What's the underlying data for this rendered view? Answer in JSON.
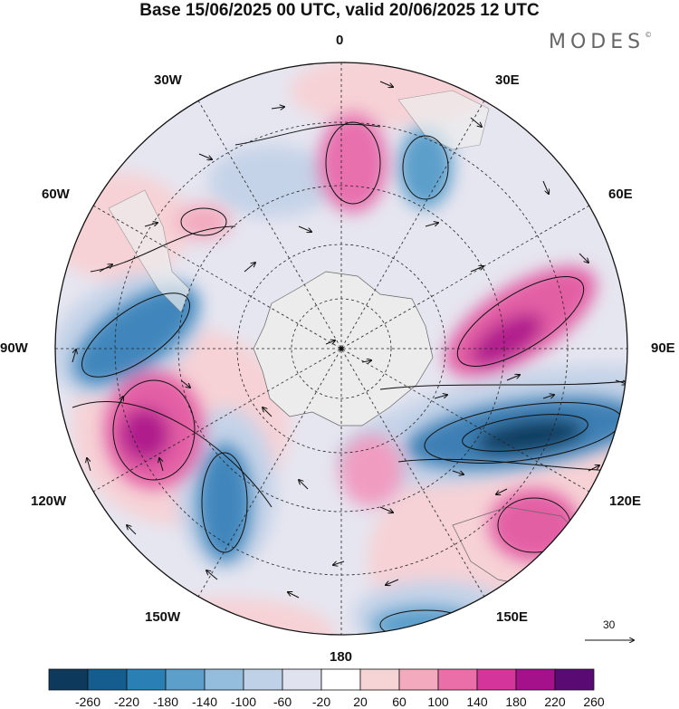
{
  "title": "Base 15/06/2025 00 UTC, valid 20/06/2025 12 UTC",
  "brand": "MODES",
  "brand_mark": "©",
  "longitude_labels": {
    "lon_0": "0",
    "lon_30e": "30E",
    "lon_60e": "60E",
    "lon_90e": "90E",
    "lon_120e": "120E",
    "lon_150e": "150E",
    "lon_180": "180",
    "lon_150w": "150W",
    "lon_120w": "120W",
    "lon_90w": "90W",
    "lon_60w": "60W",
    "lon_30w": "30W"
  },
  "reference_vector": {
    "label": "30"
  },
  "colorbar": {
    "ticks": [
      "-260",
      "-220",
      "-180",
      "-140",
      "-100",
      "-60",
      "-20",
      "20",
      "60",
      "100",
      "140",
      "180",
      "220",
      "260"
    ],
    "colors": [
      "#0d3a5c",
      "#155d8e",
      "#2a7fb5",
      "#5c9fcb",
      "#93bcdd",
      "#bfd1e7",
      "#e1e2ef",
      "#ffffff",
      "#f6d4d6",
      "#f3aabe",
      "#ea6ea8",
      "#d3359a",
      "#a4118a",
      "#5a0a73"
    ]
  },
  "map_data": {
    "projection": "south-polar-stereographic",
    "variable_colors": {
      "negative_strong": "#1f5b8c",
      "negative_weak": "#c8d4ea",
      "positive_weak": "#f7d3d8",
      "positive_strong": "#d6379b",
      "land": "#e8e8e8"
    }
  }
}
